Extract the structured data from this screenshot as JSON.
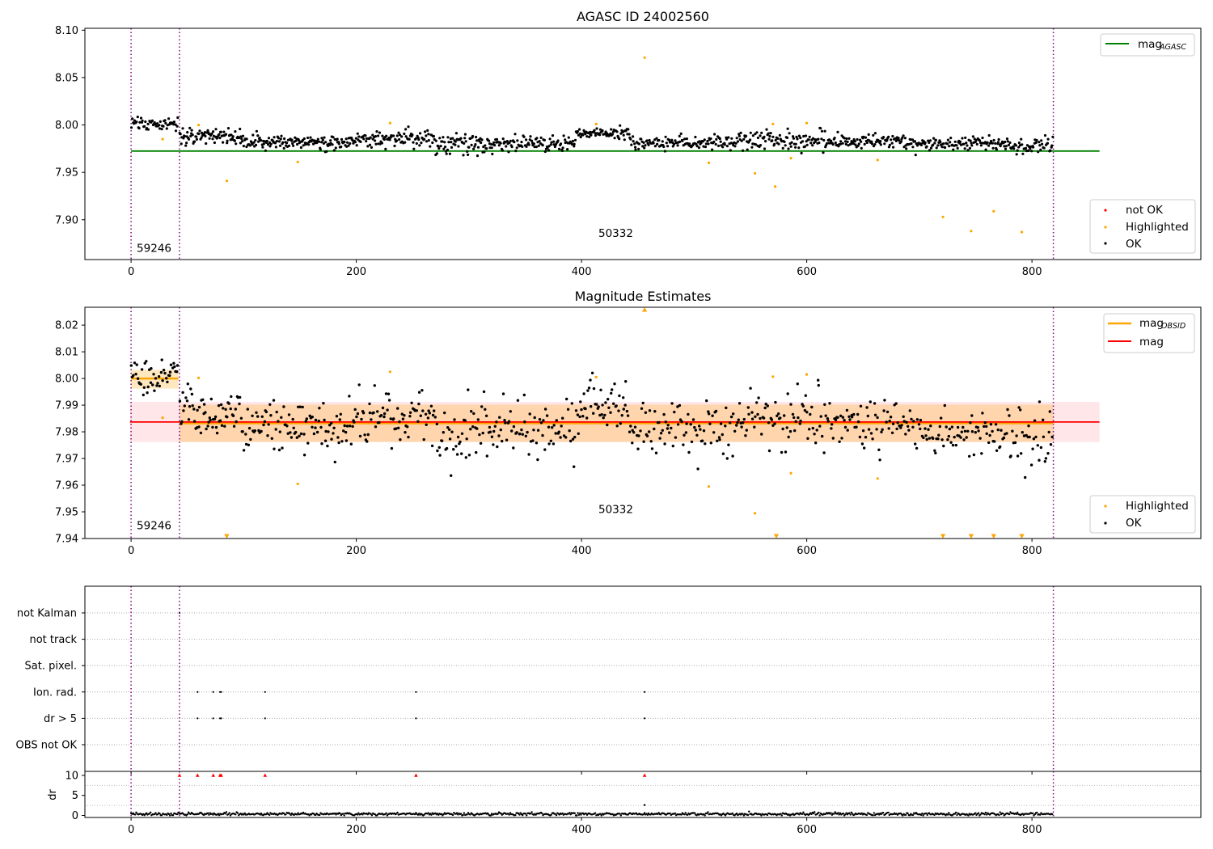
{
  "chart_data": [
    {
      "type": "scatter",
      "title": "AGASC ID 24002560",
      "xlabel": "",
      "ylabel": "",
      "xlim": [
        -41,
        950
      ],
      "ylim": [
        7.858,
        8.102
      ],
      "xticks": [
        0,
        200,
        400,
        600,
        800
      ],
      "yticks": [
        7.9,
        7.95,
        8.0,
        8.05,
        8.1
      ],
      "ytick_labels": [
        "7.90",
        "7.95",
        "8.00",
        "8.05",
        "8.10"
      ],
      "obs_boundaries": [
        0,
        43,
        819
      ],
      "annotations": [
        {
          "text": "59246",
          "x": 5,
          "y": 7.866
        },
        {
          "text": "50332",
          "x": 415,
          "y": 7.882
        }
      ],
      "lines": [
        {
          "name": "mag",
          "subscript": "AGASC",
          "color": "#008000",
          "y": 7.9725,
          "x0": 0,
          "x1": 860
        }
      ],
      "legend_upper": [
        {
          "name": "mag",
          "subscript": "AGASC",
          "color": "#008000",
          "kind": "line"
        }
      ],
      "legend_lower": [
        {
          "name": "not OK",
          "color": "#ff0000",
          "kind": "point"
        },
        {
          "name": "Highlighted",
          "color": "#ffa500",
          "kind": "point"
        },
        {
          "name": "OK",
          "color": "#000000",
          "kind": "point"
        }
      ],
      "highlighted": {
        "color": "#ffa500",
        "x": [
          28,
          60,
          85,
          148,
          230,
          413,
          456,
          513,
          554,
          570,
          572,
          586,
          600,
          663,
          721,
          746,
          766,
          791
        ],
        "y": [
          7.985,
          8.0,
          7.941,
          7.961,
          8.002,
          8.001,
          8.071,
          7.96,
          7.949,
          8.001,
          7.935,
          7.965,
          8.002,
          7.963,
          7.903,
          7.888,
          7.909,
          7.887
        ]
      },
      "ok_series": {
        "color": "#000000",
        "segments": [
          {
            "x0": 0,
            "x1": 42,
            "n": 55,
            "mean": 8.001,
            "spread": 0.007
          },
          {
            "x0": 43,
            "x1": 100,
            "n": 90,
            "mean": 7.988,
            "spread": 0.008
          },
          {
            "x0": 100,
            "x1": 200,
            "n": 150,
            "mean": 7.982,
            "spread": 0.007
          },
          {
            "x0": 200,
            "x1": 270,
            "n": 100,
            "mean": 7.985,
            "spread": 0.008
          },
          {
            "x0": 270,
            "x1": 330,
            "n": 90,
            "mean": 7.98,
            "spread": 0.009
          },
          {
            "x0": 330,
            "x1": 395,
            "n": 90,
            "mean": 7.98,
            "spread": 0.008
          },
          {
            "x0": 395,
            "x1": 442,
            "n": 70,
            "mean": 7.991,
            "spread": 0.005
          },
          {
            "x0": 442,
            "x1": 540,
            "n": 130,
            "mean": 7.981,
            "spread": 0.007
          },
          {
            "x0": 540,
            "x1": 620,
            "n": 110,
            "mean": 7.984,
            "spread": 0.009
          },
          {
            "x0": 620,
            "x1": 700,
            "n": 110,
            "mean": 7.983,
            "spread": 0.007
          },
          {
            "x0": 700,
            "x1": 780,
            "n": 110,
            "mean": 7.98,
            "spread": 0.006
          },
          {
            "x0": 780,
            "x1": 819,
            "n": 50,
            "mean": 7.978,
            "spread": 0.008
          }
        ]
      }
    },
    {
      "type": "scatter",
      "title": "Magnitude Estimates",
      "xlabel": "",
      "ylabel": "",
      "xlim": [
        -41,
        950
      ],
      "ylim": [
        7.94,
        8.0267
      ],
      "xticks": [
        0,
        200,
        400,
        600,
        800
      ],
      "yticks": [
        7.94,
        7.95,
        7.96,
        7.97,
        7.98,
        7.99,
        8.0,
        8.01,
        8.02
      ],
      "ytick_labels": [
        "7.94",
        "7.95",
        "7.96",
        "7.97",
        "7.98",
        "7.99",
        "8.00",
        "8.01",
        "8.02"
      ],
      "obs_boundaries": [
        0,
        43,
        819
      ],
      "annotations": [
        {
          "text": "59246",
          "x": 5,
          "y": 7.9435
        },
        {
          "text": "50332",
          "x": 415,
          "y": 7.9495
        }
      ],
      "bands": [
        {
          "color": "#ffb6c1",
          "opacity": 0.35,
          "x0": -1,
          "x1": 860,
          "y0": 7.9762,
          "y1": 7.9912
        },
        {
          "color": "#ffa500",
          "opacity": 0.25,
          "x0": 0,
          "x1": 42,
          "y0": 7.9962,
          "y1": 8.0032
        },
        {
          "color": "#ffa500",
          "opacity": 0.25,
          "x0": 43,
          "x1": 819,
          "y0": 7.9762,
          "y1": 7.9902
        }
      ],
      "lines": [
        {
          "name": "mag",
          "subscript": "OBSID",
          "color": "#ffa500",
          "y": 8.0,
          "x0": 0,
          "x1": 42
        },
        {
          "name": "mag",
          "subscript": "OBSID",
          "color": "#ffa500",
          "y": 7.9832,
          "x0": 43,
          "x1": 819
        },
        {
          "name": "mag",
          "color": "#ff0000",
          "y": 7.9837,
          "x0": -1,
          "x1": 860
        }
      ],
      "legend_upper": [
        {
          "name": "mag",
          "subscript": "OBSID",
          "color": "#ffa500",
          "kind": "line"
        },
        {
          "name": "mag",
          "color": "#ff0000",
          "kind": "line"
        }
      ],
      "legend_lower": [
        {
          "name": "Highlighted",
          "color": "#ffa500",
          "kind": "point"
        },
        {
          "name": "OK",
          "color": "#000000",
          "kind": "point"
        }
      ],
      "highlighted": {
        "color": "#ffa500",
        "x": [
          28,
          60,
          148,
          230,
          413,
          513,
          554,
          570,
          586,
          600,
          663
        ],
        "y": [
          7.9853,
          8.0002,
          7.9605,
          8.0025,
          8.0005,
          7.9595,
          7.9495,
          8.0007,
          7.9645,
          8.0015,
          7.9625
        ]
      },
      "out_of_range": {
        "color": "#ffa500",
        "above": [
          456
        ],
        "below": [
          85,
          573,
          721,
          746,
          766,
          791
        ]
      },
      "ok_series": {
        "color": "#000000",
        "segments": [
          {
            "x0": 0,
            "x1": 42,
            "n": 45,
            "mean": 8.001,
            "spread": 0.007
          },
          {
            "x0": 43,
            "x1": 100,
            "n": 65,
            "mean": 7.988,
            "spread": 0.009
          },
          {
            "x0": 100,
            "x1": 200,
            "n": 100,
            "mean": 7.982,
            "spread": 0.009
          },
          {
            "x0": 200,
            "x1": 270,
            "n": 70,
            "mean": 7.985,
            "spread": 0.009
          },
          {
            "x0": 270,
            "x1": 330,
            "n": 60,
            "mean": 7.979,
            "spread": 0.011
          },
          {
            "x0": 330,
            "x1": 395,
            "n": 60,
            "mean": 7.98,
            "spread": 0.01
          },
          {
            "x0": 395,
            "x1": 442,
            "n": 50,
            "mean": 7.99,
            "spread": 0.008
          },
          {
            "x0": 442,
            "x1": 540,
            "n": 90,
            "mean": 7.981,
            "spread": 0.009
          },
          {
            "x0": 540,
            "x1": 620,
            "n": 75,
            "mean": 7.984,
            "spread": 0.011
          },
          {
            "x0": 620,
            "x1": 700,
            "n": 75,
            "mean": 7.983,
            "spread": 0.009
          },
          {
            "x0": 700,
            "x1": 780,
            "n": 75,
            "mean": 7.98,
            "spread": 0.008
          },
          {
            "x0": 780,
            "x1": 819,
            "n": 35,
            "mean": 7.978,
            "spread": 0.01
          }
        ]
      }
    },
    {
      "type": "scatter",
      "title": "",
      "xlabel": "",
      "ylabel": "",
      "xlim": [
        -41,
        950
      ],
      "categories": [
        "not Kalman",
        "not track",
        "Sat. pixel.",
        "Ion. rad.",
        "dr > 5",
        "OBS not OK"
      ],
      "obs_boundaries": [
        0,
        43,
        819
      ],
      "flags": {
        "not Kalman": [
          43
        ],
        "not track": [],
        "Sat. pixel.": [],
        "Ion. rad.": [
          59,
          73,
          79,
          80,
          119,
          253,
          456
        ],
        "dr > 5": [
          59,
          73,
          79,
          80,
          119,
          253,
          456
        ],
        "OBS not OK": []
      }
    },
    {
      "type": "scatter",
      "title": "",
      "xlabel": "",
      "ylabel": "dr",
      "xlim": [
        -41,
        950
      ],
      "ylim": [
        -0.5,
        11
      ],
      "yticks": [
        0,
        5,
        10
      ],
      "ytick_labels": [
        "0",
        "5",
        "10"
      ],
      "obs_boundaries": [
        0,
        43,
        819
      ],
      "clipped": {
        "color": "#ff0000",
        "value": 10,
        "x": [
          43,
          59,
          73,
          79,
          80,
          119,
          253,
          456
        ]
      },
      "outliers": {
        "x": [
          456
        ],
        "y": [
          2.6
        ]
      },
      "ok_series": {
        "color": "#000000",
        "x0": 0,
        "x1": 819,
        "n": 900,
        "mean": 0.35,
        "spread": 0.18
      }
    }
  ]
}
